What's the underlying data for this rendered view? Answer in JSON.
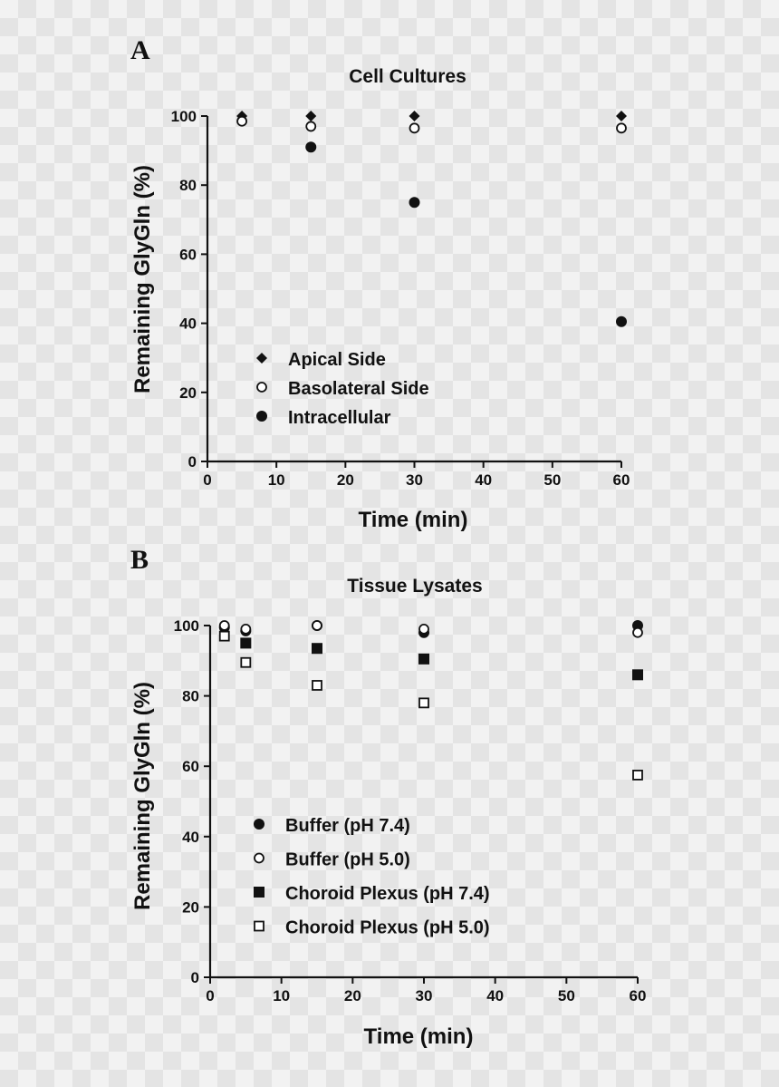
{
  "chart_data": [
    {
      "type": "scatter",
      "panel": "A",
      "title": "Cell Cultures",
      "xlabel": "Time (min)",
      "ylabel": "Remaining GlyGln (%)",
      "xlim": [
        0,
        60
      ],
      "ylim": [
        0,
        100
      ],
      "xticks": [
        "0",
        "10",
        "20",
        "30",
        "40",
        "50",
        "60"
      ],
      "yticks": [
        "0",
        "20",
        "40",
        "60",
        "80",
        "100"
      ],
      "legend_position": "lower-left",
      "series": [
        {
          "name": "Apical Side",
          "marker": "diamond-filled",
          "x": [
            5,
            15,
            30,
            60
          ],
          "y": [
            100,
            100,
            100,
            100
          ]
        },
        {
          "name": "Basolateral Side",
          "marker": "circle-open",
          "x": [
            5,
            15,
            30,
            60
          ],
          "y": [
            98.5,
            97,
            96.5,
            96.5
          ]
        },
        {
          "name": "Intracellular",
          "marker": "circle-filled",
          "x": [
            15,
            30,
            60
          ],
          "y": [
            91,
            75,
            40.5
          ]
        }
      ]
    },
    {
      "type": "scatter",
      "panel": "B",
      "title": "Tissue Lysates",
      "xlabel": "Time (min)",
      "ylabel": "Remaining GlyGln (%)",
      "xlim": [
        0,
        60
      ],
      "ylim": [
        0,
        100
      ],
      "xticks": [
        "0",
        "10",
        "20",
        "30",
        "40",
        "50",
        "60"
      ],
      "yticks": [
        "0",
        "20",
        "40",
        "60",
        "80",
        "100"
      ],
      "legend_position": "lower-left",
      "series": [
        {
          "name": "Buffer (pH 7.4)",
          "marker": "circle-filled",
          "x": [
            2,
            5,
            15,
            30,
            60
          ],
          "y": [
            99.5,
            98.5,
            100,
            98,
            100
          ]
        },
        {
          "name": "Buffer (pH 5.0)",
          "marker": "circle-open",
          "x": [
            2,
            5,
            15,
            30,
            60
          ],
          "y": [
            100,
            99,
            100,
            99,
            98
          ]
        },
        {
          "name": "Choroid Plexus (pH 7.4)",
          "marker": "square-filled",
          "x": [
            5,
            15,
            30,
            60
          ],
          "y": [
            95,
            93.5,
            90.5,
            86
          ]
        },
        {
          "name": "Choroid Plexus (pH 5.0)",
          "marker": "square-open",
          "x": [
            2,
            5,
            15,
            30,
            60
          ],
          "y": [
            97,
            89.5,
            83,
            78,
            57.5
          ]
        }
      ]
    }
  ]
}
